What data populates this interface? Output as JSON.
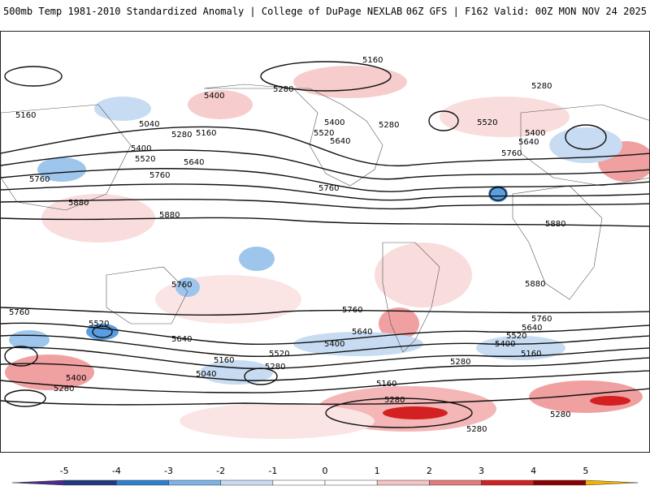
{
  "header": {
    "title_left": "500mb Temp 1981-2010 Standardized Anomaly | College of DuPage NEXLAB",
    "title_right": "06Z GFS | F162 Valid: 00Z MON NOV 24 2025"
  },
  "map": {
    "variable": "500mb geopotential height contours with temperature standardized anomaly shading",
    "contour_labels": [
      {
        "text": "5160"
      },
      {
        "text": "5280"
      },
      {
        "text": "5400"
      },
      {
        "text": "5160"
      },
      {
        "text": "5040"
      },
      {
        "text": "5280"
      },
      {
        "text": "5160"
      },
      {
        "text": "5400"
      },
      {
        "text": "5520"
      },
      {
        "text": "5640"
      },
      {
        "text": "5760"
      },
      {
        "text": "5880"
      },
      {
        "text": "5880"
      },
      {
        "text": "5760"
      },
      {
        "text": "5400"
      },
      {
        "text": "5520"
      },
      {
        "text": "5640"
      },
      {
        "text": "5280"
      },
      {
        "text": "5280"
      },
      {
        "text": "5520"
      },
      {
        "text": "5400"
      },
      {
        "text": "5640"
      },
      {
        "text": "5760"
      },
      {
        "text": "5880"
      },
      {
        "text": "5760"
      },
      {
        "text": "5880"
      },
      {
        "text": "5760"
      },
      {
        "text": "5760"
      },
      {
        "text": "5520"
      },
      {
        "text": "5640"
      },
      {
        "text": "5400"
      },
      {
        "text": "5280"
      },
      {
        "text": "5760"
      },
      {
        "text": "5640"
      },
      {
        "text": "5400"
      },
      {
        "text": "5520"
      },
      {
        "text": "5160"
      },
      {
        "text": "5280"
      },
      {
        "text": "5040"
      },
      {
        "text": "5160"
      },
      {
        "text": "5760"
      },
      {
        "text": "5640"
      },
      {
        "text": "5520"
      },
      {
        "text": "5400"
      },
      {
        "text": "5280"
      },
      {
        "text": "5160"
      },
      {
        "text": "5280"
      },
      {
        "text": "5280"
      },
      {
        "text": "5280"
      }
    ]
  },
  "colorbar": {
    "ticks": [
      "-5",
      "-4",
      "-3",
      "-2",
      "-1",
      "0",
      "1",
      "2",
      "3",
      "4",
      "5"
    ],
    "colors": [
      "#4b2a8c",
      "#1f3a80",
      "#2f7fd0",
      "#7db3e6",
      "#c7dcf2",
      "#ffffff",
      "#ffffff",
      "#f4c3c3",
      "#e67a7a",
      "#d32020",
      "#8b0000",
      "#f0b400"
    ]
  }
}
